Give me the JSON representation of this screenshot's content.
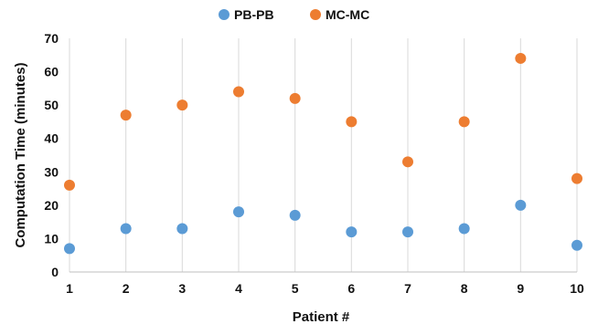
{
  "chart_data": {
    "type": "scatter",
    "x": [
      1,
      2,
      3,
      4,
      5,
      6,
      7,
      8,
      9,
      10
    ],
    "series": [
      {
        "name": "PB-PB",
        "color": "#5b9bd5",
        "values": [
          7,
          13,
          13,
          18,
          17,
          12,
          12,
          13,
          20,
          8
        ]
      },
      {
        "name": "MC-MC",
        "color": "#ed7d31",
        "values": [
          26,
          47,
          50,
          54,
          52,
          45,
          33,
          45,
          64,
          28
        ]
      }
    ],
    "xlabel": "Patient #",
    "ylabel": "Computation Time (minutes)",
    "xlim": [
      1,
      10
    ],
    "ylim": [
      0,
      70
    ],
    "yticks": [
      0,
      10,
      20,
      30,
      40,
      50,
      60,
      70
    ],
    "xticks": [
      1,
      2,
      3,
      4,
      5,
      6,
      7,
      8,
      9,
      10
    ],
    "grid": "vertical",
    "legend": "top-center"
  }
}
